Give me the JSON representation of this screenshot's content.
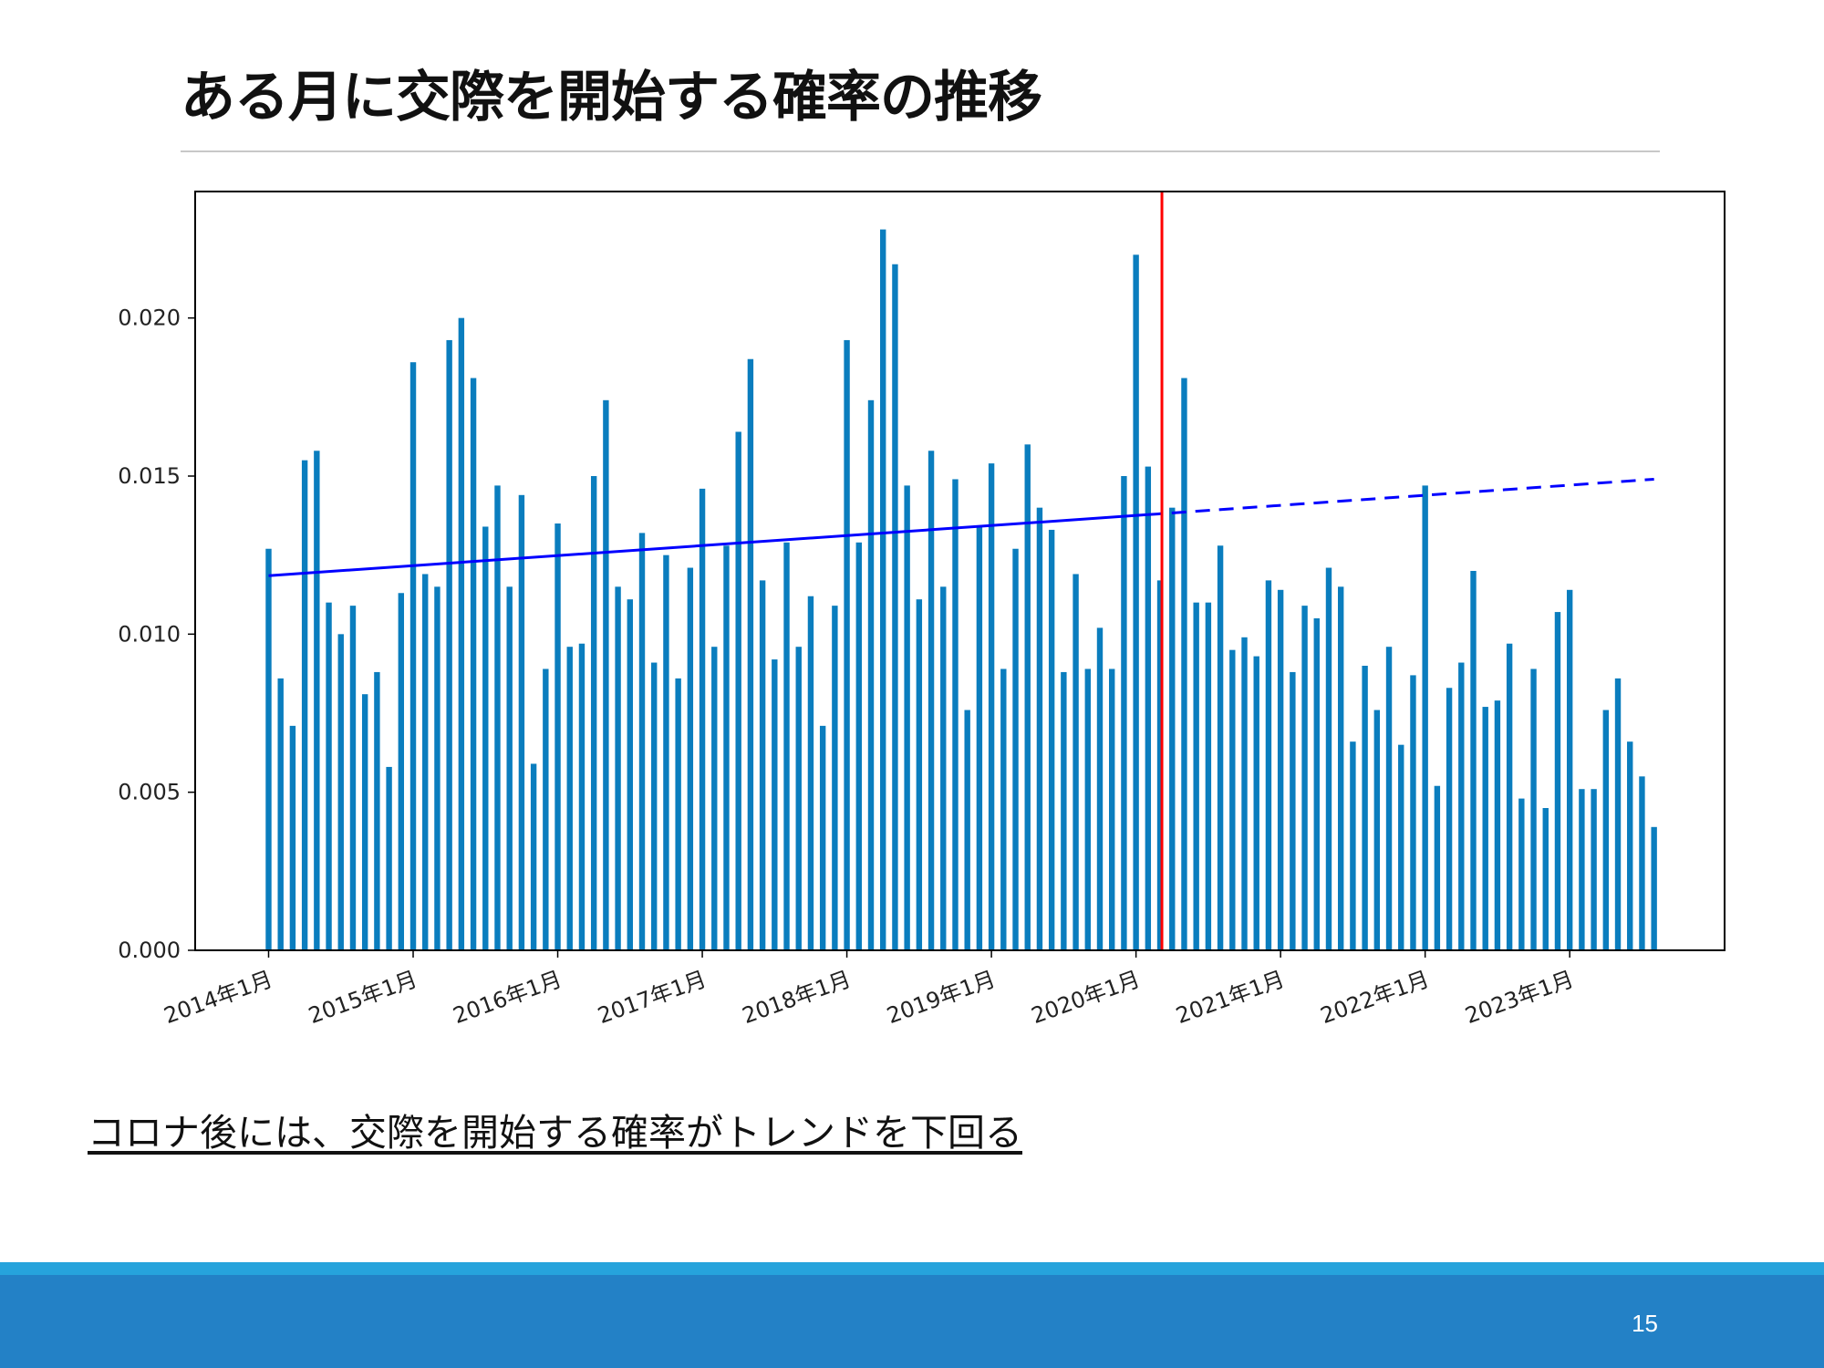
{
  "slide": {
    "title": "ある月に交際を開始する確率の推移",
    "caption": "コロナ後には、交際を開始する確率がトレンドを下回る",
    "page_number": "15"
  },
  "colors": {
    "bar": "#0a7dbe",
    "trend": "#0000ff",
    "marker": "#ff0000",
    "footer": "#2381c6",
    "footer_stripe": "#26a3dc"
  },
  "chart_data": {
    "type": "bar",
    "title": "",
    "xlabel": "",
    "ylabel": "",
    "ylim": [
      0,
      0.024
    ],
    "yticks": [
      "0.000",
      "0.005",
      "0.010",
      "0.015",
      "0.020"
    ],
    "ytick_values": [
      0,
      0.005,
      0.01,
      0.015,
      0.02
    ],
    "xticks": [
      "2014年1月",
      "2015年1月",
      "2016年1月",
      "2017年1月",
      "2018年1月",
      "2019年1月",
      "2020年1月",
      "2021年1月",
      "2022年1月",
      "2023年1月"
    ],
    "x_start": "2014年1月",
    "grid": false,
    "values": [
      0.0127,
      0.0086,
      0.0071,
      0.0155,
      0.0158,
      0.011,
      0.01,
      0.0109,
      0.0081,
      0.0088,
      0.0058,
      0.0113,
      0.0186,
      0.0119,
      0.0115,
      0.0193,
      0.02,
      0.0181,
      0.0134,
      0.0147,
      0.0115,
      0.0144,
      0.0059,
      0.0089,
      0.0135,
      0.0096,
      0.0097,
      0.015,
      0.0174,
      0.0115,
      0.0111,
      0.0132,
      0.0091,
      0.0125,
      0.0086,
      0.0121,
      0.0146,
      0.0096,
      0.0128,
      0.0164,
      0.0187,
      0.0117,
      0.0092,
      0.0129,
      0.0096,
      0.0112,
      0.0071,
      0.0109,
      0.0193,
      0.0129,
      0.0174,
      0.0228,
      0.0217,
      0.0147,
      0.0111,
      0.0158,
      0.0115,
      0.0149,
      0.0076,
      0.0134,
      0.0154,
      0.0089,
      0.0127,
      0.016,
      0.014,
      0.0133,
      0.0088,
      0.0119,
      0.0089,
      0.0102,
      0.0089,
      0.015,
      0.022,
      0.0153,
      0.0117,
      0.014,
      0.0181,
      0.011,
      0.011,
      0.0128,
      0.0095,
      0.0099,
      0.0093,
      0.0117,
      0.0114,
      0.0088,
      0.0109,
      0.0105,
      0.0121,
      0.0115,
      0.0066,
      0.009,
      0.0076,
      0.0096,
      0.0065,
      0.0087,
      0.0147,
      0.0052,
      0.0083,
      0.0091,
      0.012,
      0.0077,
      0.0079,
      0.0097,
      0.0048,
      0.0089,
      0.0045,
      0.0107,
      0.0114,
      0.0051,
      0.0051,
      0.0076,
      0.0086,
      0.0066,
      0.0055,
      0.0039
    ],
    "trend_line": {
      "start_value": 0.01185,
      "fitted_end_value": 0.01378,
      "end_value": 0.0149,
      "fitted_until": "2020年2月"
    },
    "vertical_marker": "2020年3月"
  }
}
